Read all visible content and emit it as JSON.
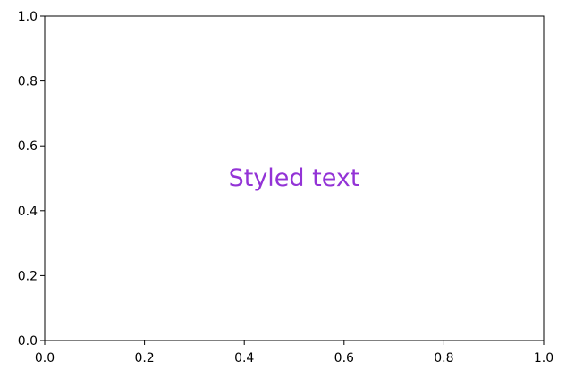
{
  "chart_data": {
    "type": "scatter",
    "xlim": [
      0.0,
      1.0
    ],
    "ylim": [
      0.0,
      1.0
    ],
    "x_ticks": [
      {
        "value": 0.0,
        "label": "0.0"
      },
      {
        "value": 0.2,
        "label": "0.2"
      },
      {
        "value": 0.4,
        "label": "0.4"
      },
      {
        "value": 0.6,
        "label": "0.6"
      },
      {
        "value": 0.8,
        "label": "0.8"
      },
      {
        "value": 1.0,
        "label": "1.0"
      }
    ],
    "y_ticks": [
      {
        "value": 0.0,
        "label": "0.0"
      },
      {
        "value": 0.2,
        "label": "0.2"
      },
      {
        "value": 0.4,
        "label": "0.4"
      },
      {
        "value": 0.6,
        "label": "0.6"
      },
      {
        "value": 0.8,
        "label": "0.8"
      },
      {
        "value": 1.0,
        "label": "1.0"
      }
    ],
    "annotations": [
      {
        "text": "Styled text",
        "x": 0.5,
        "y": 0.5,
        "color": "#9333d6"
      }
    ],
    "grid": false
  }
}
